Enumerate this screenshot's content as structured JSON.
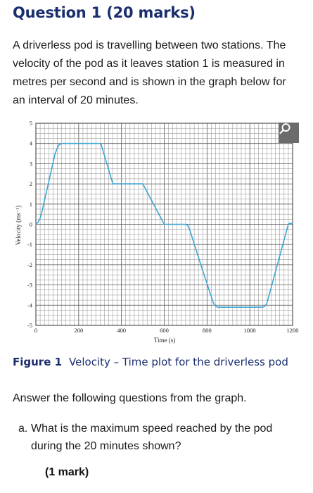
{
  "heading": "Question 1 (20 marks)",
  "intro": "A driverless pod is travelling between two stations. The velocity of the pod as it leaves station 1 is measured in metres per second and is shown in the graph below for an interval of 20 minutes.",
  "zoom_icon": "magnifier-icon",
  "chart_data": {
    "type": "line",
    "xlabel": "Time (s)",
    "ylabel": "Velocity (ms⁻¹)",
    "xlim": [
      0,
      1200
    ],
    "ylim": [
      -5,
      5
    ],
    "xticks": [
      0,
      200,
      400,
      600,
      800,
      1000,
      1200
    ],
    "xtick_labels": [
      "0",
      "200",
      "400",
      "600",
      "800",
      "1000",
      "1200"
    ],
    "yticks": [
      5,
      4,
      3,
      2,
      1,
      0,
      -1,
      -2,
      -3,
      -4,
      -5
    ],
    "ytick_labels": [
      "5",
      "4",
      "3",
      "2",
      "1",
      "0",
      "-1",
      "-2",
      "-3",
      "-4",
      "-5"
    ],
    "grid": true,
    "line_color": "#3ea6d3",
    "series": [
      {
        "x": [
          0,
          10,
          20,
          30,
          45,
          60,
          75,
          90,
          105,
          120,
          300,
          305,
          360,
          500,
          505,
          600,
          700,
          710,
          720,
          780,
          830,
          840,
          850,
          1060,
          1070,
          1080,
          1180,
          1185,
          1190,
          1200
        ],
        "y": [
          0,
          0.1,
          0.3,
          0.7,
          1.4,
          2.1,
          2.8,
          3.5,
          3.9,
          4.0,
          4.0,
          3.95,
          2.0,
          2.0,
          1.9,
          0.0,
          0.0,
          -0.05,
          -0.3,
          -2.3,
          -3.9,
          -4.05,
          -4.1,
          -4.1,
          -4.05,
          -3.9,
          0.0,
          0.05,
          0.05,
          0.05
        ]
      }
    ]
  },
  "caption": {
    "label": "Figure 1",
    "text": "Velocity – Time plot for the driverless pod"
  },
  "answer_intro": "Answer the following questions from the graph.",
  "question_a": {
    "letter": "a.",
    "text": "What is the maximum speed reached by the pod during the 20 minutes shown?",
    "marks": "(1 mark)"
  }
}
